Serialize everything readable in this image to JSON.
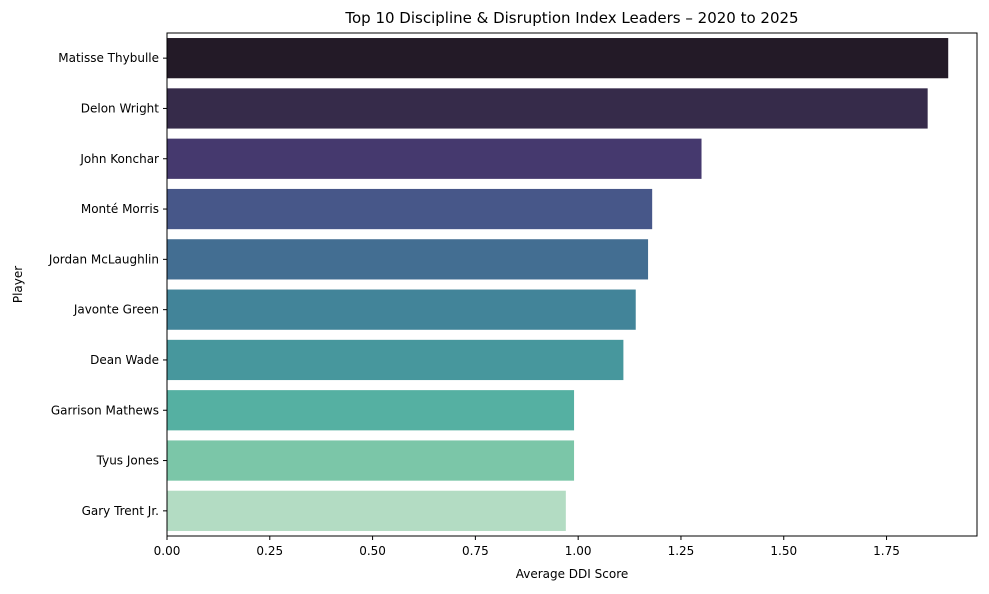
{
  "chart_data": {
    "type": "bar",
    "orientation": "horizontal",
    "title": "Top 10 Discipline & Disruption Index Leaders – 2020 to 2025",
    "xlabel": "Average DDI Score",
    "ylabel": "Player",
    "xlim": [
      0,
      1.97
    ],
    "xticks": [
      "0.00",
      "0.25",
      "0.50",
      "0.75",
      "1.00",
      "1.25",
      "1.50",
      "1.75"
    ],
    "grid": false,
    "categories": [
      "Matisse Thybulle",
      "Delon Wright",
      "John Konchar",
      "Monté Morris",
      "Jordan McLaughlin",
      "Javonte Green",
      "Dean Wade",
      "Garrison Mathews",
      "Tyus Jones",
      "Gary Trent Jr."
    ],
    "values": [
      1.9,
      1.85,
      1.3,
      1.18,
      1.17,
      1.14,
      1.11,
      0.99,
      0.99,
      0.97
    ],
    "colors": [
      "#231A27",
      "#362B4A",
      "#45396E",
      "#475789",
      "#436E92",
      "#428499",
      "#47979D",
      "#55B0A2",
      "#7BC6A8",
      "#B3DCC3"
    ]
  }
}
